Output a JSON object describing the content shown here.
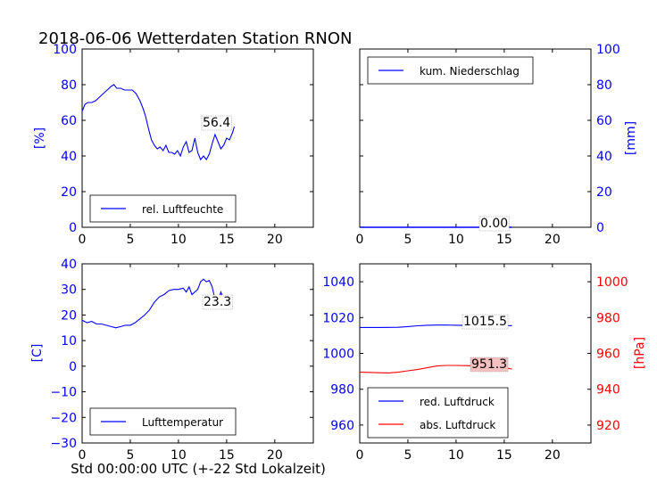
{
  "title": "2018-06-06 Wetterdaten Station RNON",
  "xlabel": "Std 00:00:00 UTC (+-22 Std Lokalzeit)",
  "colors": {
    "blue": "#0000ff",
    "red": "#ff0000",
    "label_box_red": "#f4c0c0"
  },
  "chart_data": [
    {
      "type": "line",
      "name": "humidity",
      "ylabel": "[%]",
      "xlim": [
        0,
        24
      ],
      "ylim": [
        0,
        100
      ],
      "xticks": [
        0,
        5,
        10,
        15,
        20
      ],
      "yticks": [
        0,
        20,
        40,
        60,
        80,
        100
      ],
      "legend": "bottom-left",
      "value_label": "56.4",
      "series": [
        {
          "name": "rel. Luftfeuchte",
          "color": "#0000ff",
          "x": [
            0,
            0.3,
            0.6,
            1.0,
            1.4,
            1.8,
            2.2,
            2.6,
            3.0,
            3.3,
            3.6,
            4.0,
            4.4,
            4.8,
            5.2,
            5.6,
            6.0,
            6.3,
            6.6,
            6.9,
            7.2,
            7.5,
            7.8,
            8.1,
            8.4,
            8.7,
            9.0,
            9.3,
            9.6,
            9.9,
            10.2,
            10.5,
            10.8,
            11.1,
            11.4,
            11.7,
            12.0,
            12.3,
            12.6,
            12.9,
            13.2,
            13.5,
            13.8,
            14.1,
            14.4,
            14.7,
            15.0,
            15.3,
            15.6,
            15.8
          ],
          "y": [
            65,
            69,
            70,
            70,
            71,
            73,
            75,
            77,
            79,
            80,
            78,
            78,
            77,
            77,
            77,
            75,
            71,
            67,
            62,
            55,
            49,
            46,
            44,
            45,
            43,
            46,
            42,
            42,
            41,
            43,
            40,
            45,
            48,
            42,
            43,
            50,
            42,
            38,
            40,
            38,
            41,
            47,
            52,
            48,
            44,
            46,
            50,
            49,
            53,
            56.4
          ]
        }
      ]
    },
    {
      "type": "line",
      "name": "precipitation",
      "ylabel": "[mm]",
      "xlim": [
        0,
        24
      ],
      "ylim": [
        0,
        100
      ],
      "xticks": [
        0,
        5,
        10,
        15,
        20
      ],
      "yticks": [
        0,
        20,
        40,
        60,
        80,
        100
      ],
      "legend": "top-left",
      "value_label": "0.00",
      "series": [
        {
          "name": "kum. Niederschlag",
          "color": "#0000ff",
          "x": [
            0,
            15.8
          ],
          "y": [
            0,
            0
          ]
        }
      ]
    },
    {
      "type": "line",
      "name": "temperature",
      "ylabel": "[C]",
      "xlim": [
        0,
        24
      ],
      "ylim": [
        -30,
        40
      ],
      "xticks": [
        0,
        5,
        10,
        15,
        20
      ],
      "yticks": [
        -30,
        -20,
        -10,
        0,
        10,
        20,
        30,
        40
      ],
      "legend": "bottom-left",
      "value_label": "23.3",
      "series": [
        {
          "name": "Lufttemperatur",
          "color": "#0000ff",
          "x": [
            0,
            0.5,
            1.0,
            1.5,
            2.0,
            2.5,
            3.0,
            3.5,
            4.0,
            4.5,
            5.0,
            5.5,
            6.0,
            6.5,
            7.0,
            7.5,
            8.0,
            8.5,
            9.0,
            9.5,
            10.0,
            10.5,
            10.8,
            11.1,
            11.4,
            11.7,
            12.0,
            12.3,
            12.6,
            12.9,
            13.2,
            13.5,
            13.8,
            14.1,
            14.4,
            14.7,
            15.0,
            15.3,
            15.6
          ],
          "y": [
            18,
            17,
            17.5,
            16.5,
            16.5,
            16,
            15.5,
            15,
            15.5,
            16,
            16,
            17,
            18.5,
            20,
            22,
            25,
            27,
            28,
            29.5,
            30,
            30,
            30.5,
            29,
            31,
            28,
            29,
            30,
            33,
            34,
            33,
            33.5,
            31,
            26,
            25,
            29,
            26,
            27,
            25,
            23.3
          ]
        }
      ]
    },
    {
      "type": "line",
      "name": "pressure",
      "ylabel": "[hPa]",
      "xlim": [
        0,
        24
      ],
      "ylim_left": [
        950,
        1050
      ],
      "yticks_left": [
        960,
        980,
        1000,
        1020,
        1040
      ],
      "ylim_right": [
        910,
        1010
      ],
      "yticks_right": [
        920,
        940,
        960,
        980,
        1000
      ],
      "xticks": [
        0,
        5,
        10,
        15,
        20
      ],
      "legend": "bottom-left",
      "value_labels": [
        "1015.5",
        "951.3"
      ],
      "series": [
        {
          "name": "red. Luftdruck",
          "color": "#0000ff",
          "axis": "left",
          "x": [
            0,
            2,
            4,
            5,
            6,
            7,
            8,
            9,
            10,
            11,
            12,
            13,
            14,
            15,
            15.8
          ],
          "y": [
            1014.5,
            1014.5,
            1014.6,
            1015,
            1015.4,
            1015.7,
            1015.8,
            1015.8,
            1015.7,
            1015.6,
            1015.5,
            1015.4,
            1015.3,
            1015.4,
            1015.5
          ]
        },
        {
          "name": "abs. Luftdruck",
          "color": "#ff0000",
          "axis": "right",
          "x": [
            0,
            1,
            2,
            3,
            4,
            5,
            6,
            7,
            8,
            9,
            10,
            11,
            12,
            13,
            14,
            15,
            15.8
          ],
          "y": [
            949.5,
            949.4,
            949.2,
            949.1,
            949.5,
            950.3,
            951,
            952,
            953,
            953.3,
            953.3,
            953.2,
            953,
            952.8,
            952.5,
            952,
            951.3
          ]
        }
      ]
    }
  ]
}
